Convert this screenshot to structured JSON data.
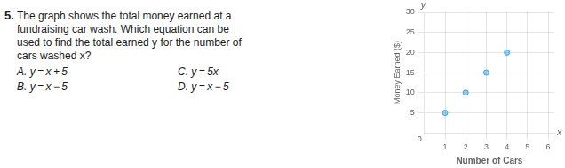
{
  "chart_data": {
    "type": "scatter",
    "x": [
      1,
      2,
      3,
      4
    ],
    "values": [
      5,
      10,
      15,
      20
    ],
    "xlim": [
      0,
      6.3
    ],
    "ylim": [
      0,
      30
    ],
    "xticks": [
      1,
      2,
      3,
      4,
      5,
      6
    ],
    "yticks": [
      5,
      10,
      15,
      20,
      25,
      30
    ],
    "xlabel": "Number of Cars",
    "ylabel": "Money Earned ($)",
    "grid": true,
    "annotations": {
      "question_number": "5.",
      "question_lines": [
        "The graph shows the total money earned at a",
        "fundraising car wash. Which equation can be",
        "used to find the total earned y for the number of",
        "cars washed x?"
      ],
      "answers": [
        "A. y = x + 5",
        "B. y = x − 5",
        "C. y = 5x",
        "D. y = x − 5"
      ],
      "axis_x": "x",
      "axis_y": "y",
      "origin": "0"
    }
  }
}
